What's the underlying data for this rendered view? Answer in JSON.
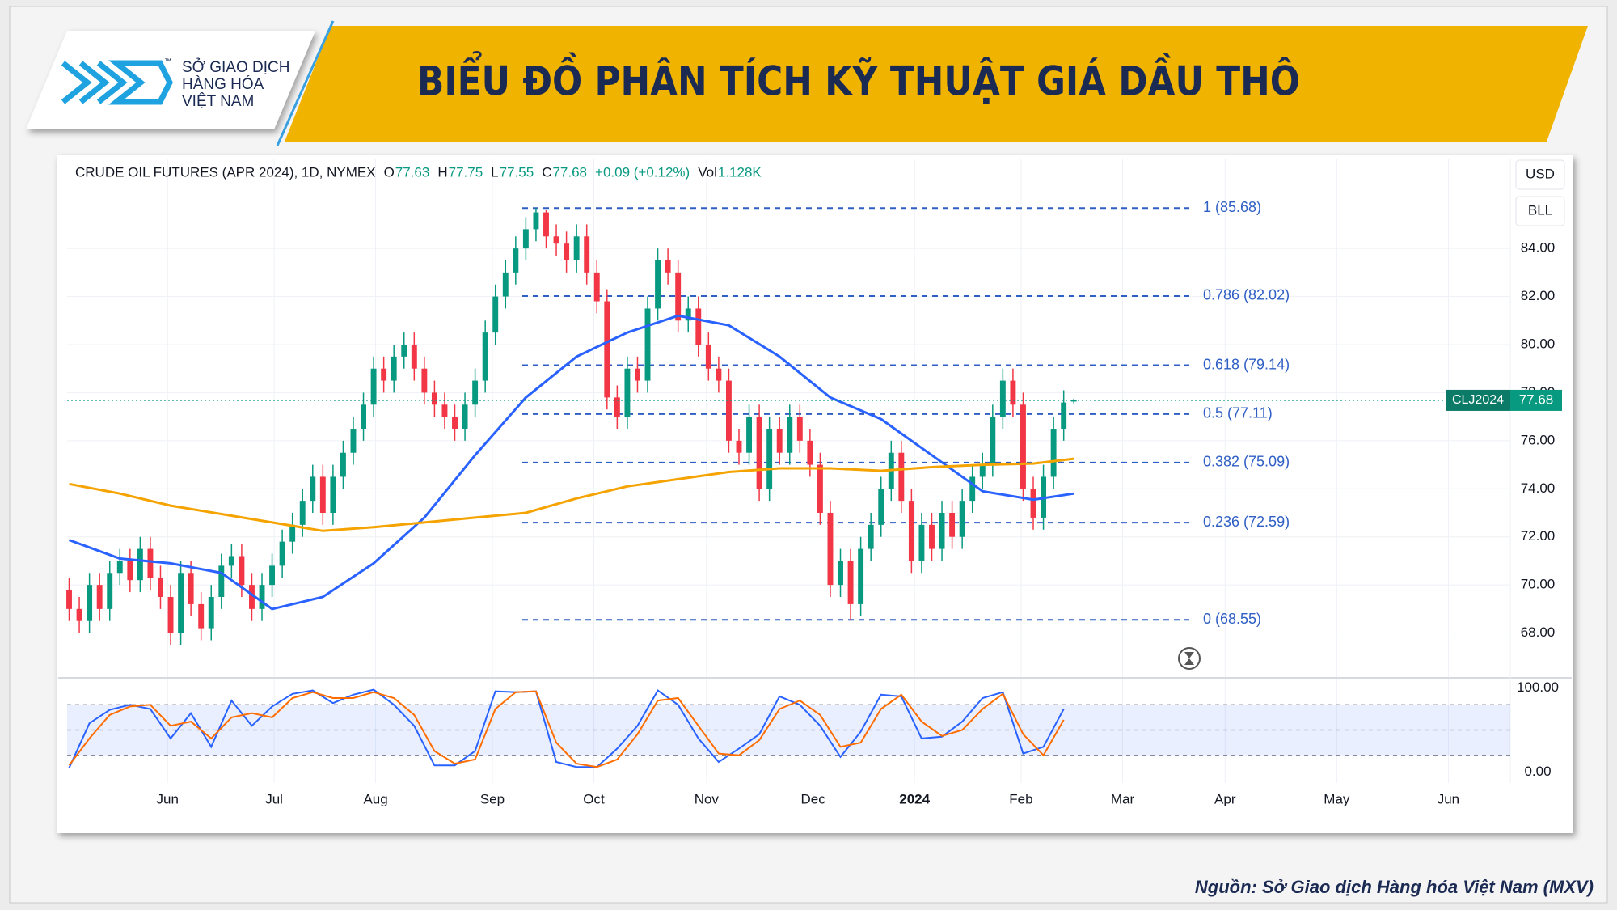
{
  "header": {
    "logo_lines": [
      "SỞ GIAO DỊCH",
      "HÀNG HÓA",
      "VIỆT NAM"
    ],
    "trademark": "™",
    "title": "BIỂU ĐỒ PHÂN TÍCH KỸ THUẬT GIÁ DẦU THÔ"
  },
  "footer": {
    "source": "Nguồn: Sở Giao dịch Hàng hóa Việt Nam (MXV)"
  },
  "chart_data": {
    "type": "candlestick",
    "title": "CRUDE OIL FUTURES (APR 2024), 1D, NYMEX",
    "ohlc_labels": [
      "O",
      "H",
      "L",
      "C"
    ],
    "change": "+0.09 (+0.12%)",
    "volume_label": "Vol",
    "volume": "1.128K",
    "currency": "USD",
    "unit": "BLL",
    "symbol": "CLJ2024",
    "up_color": "#089981",
    "down_color": "#f23645",
    "grid": true,
    "open": [
      69.8,
      69.0,
      68.5,
      70.0,
      69.0,
      70.5,
      71.0,
      70.2,
      71.5,
      70.3,
      69.5,
      68.0,
      70.5,
      69.2,
      68.2,
      69.5,
      70.8,
      71.2,
      70.0,
      69.0,
      70.0,
      70.8,
      71.8,
      72.5,
      73.5,
      74.5,
      73.0,
      74.5,
      75.5,
      76.5,
      77.5,
      79.0,
      78.5,
      79.5,
      80.0,
      79.0,
      78.0,
      77.5,
      77.0,
      76.5,
      77.5,
      78.5,
      80.5,
      82.0,
      83.0,
      84.0,
      84.8,
      85.5,
      84.5,
      84.2,
      83.5,
      84.5,
      83.0,
      81.8,
      77.8,
      77.0,
      79.0,
      78.5,
      81.5,
      83.5,
      83.0,
      81.0,
      81.5,
      80.0,
      79.0,
      78.5,
      76.0,
      75.5,
      77.0,
      74.0,
      76.5,
      75.5,
      77.0,
      76.0,
      75.0,
      73.0,
      70.0,
      71.0,
      69.2,
      71.5,
      72.5,
      74.0,
      75.5,
      73.5,
      71.0,
      72.5,
      71.5,
      73.0,
      72.0,
      73.5,
      74.5,
      75.0,
      77.0,
      78.5,
      77.5,
      74.0,
      72.8,
      74.5,
      76.5,
      77.63
    ],
    "high": [
      70.3,
      69.5,
      70.5,
      70.5,
      71.0,
      71.5,
      71.5,
      72.0,
      72.0,
      70.8,
      70.0,
      71.0,
      71.0,
      69.7,
      70.0,
      71.3,
      71.7,
      71.7,
      70.5,
      70.5,
      71.3,
      72.3,
      73.0,
      74.0,
      75.0,
      75.0,
      75.0,
      76.0,
      77.0,
      78.0,
      79.5,
      79.5,
      80.0,
      80.5,
      80.5,
      79.5,
      78.5,
      78.0,
      77.5,
      78.0,
      79.0,
      81.0,
      82.5,
      83.5,
      84.5,
      85.3,
      85.68,
      85.6,
      85.0,
      84.7,
      85.0,
      85.0,
      83.5,
      82.3,
      78.3,
      79.5,
      79.5,
      82.0,
      84.0,
      84.0,
      83.5,
      82.0,
      82.0,
      80.5,
      79.5,
      79.0,
      76.5,
      77.5,
      77.5,
      77.0,
      77.0,
      77.5,
      77.5,
      76.5,
      75.5,
      73.5,
      71.5,
      71.5,
      72.0,
      73.0,
      74.5,
      76.0,
      76.0,
      74.0,
      73.0,
      73.0,
      73.5,
      73.5,
      74.0,
      75.0,
      75.5,
      77.5,
      79.0,
      79.0,
      78.0,
      74.5,
      75.0,
      77.0,
      78.1,
      77.75
    ],
    "low": [
      68.5,
      68.0,
      68.0,
      68.5,
      68.5,
      70.0,
      69.7,
      69.7,
      69.8,
      69.0,
      67.5,
      67.5,
      68.7,
      67.7,
      67.7,
      69.0,
      70.3,
      69.5,
      68.5,
      68.5,
      69.5,
      70.3,
      71.3,
      72.0,
      73.0,
      72.5,
      72.5,
      74.0,
      75.0,
      76.0,
      77.0,
      78.0,
      78.0,
      79.0,
      78.5,
      77.5,
      77.0,
      76.5,
      76.0,
      76.0,
      77.0,
      78.0,
      80.0,
      81.5,
      82.5,
      83.5,
      84.3,
      84.0,
      83.7,
      83.0,
      83.0,
      82.5,
      81.3,
      77.3,
      76.5,
      76.5,
      78.0,
      78.0,
      81.0,
      82.5,
      80.5,
      80.5,
      79.5,
      78.5,
      78.0,
      75.5,
      75.0,
      75.0,
      73.5,
      73.5,
      75.0,
      75.0,
      75.5,
      74.5,
      72.5,
      69.5,
      69.5,
      68.55,
      68.7,
      71.0,
      72.0,
      73.5,
      73.0,
      70.5,
      70.5,
      71.0,
      71.0,
      71.5,
      71.5,
      73.0,
      74.0,
      74.5,
      76.5,
      77.0,
      73.5,
      72.3,
      72.3,
      74.0,
      76.0,
      77.55
    ],
    "close": [
      69.0,
      68.5,
      70.0,
      69.0,
      70.5,
      71.0,
      70.2,
      71.5,
      70.3,
      69.5,
      68.0,
      70.5,
      69.2,
      68.2,
      69.5,
      70.8,
      71.2,
      70.0,
      69.0,
      70.0,
      70.8,
      71.8,
      72.5,
      73.5,
      74.5,
      73.0,
      74.5,
      75.5,
      76.5,
      77.5,
      79.0,
      78.5,
      79.5,
      80.0,
      79.0,
      78.0,
      77.5,
      77.0,
      76.5,
      77.5,
      78.5,
      80.5,
      82.0,
      83.0,
      84.0,
      84.8,
      85.5,
      84.5,
      84.2,
      83.5,
      84.5,
      83.0,
      81.8,
      77.8,
      77.0,
      79.0,
      78.5,
      81.5,
      83.5,
      83.0,
      81.0,
      81.5,
      80.0,
      79.0,
      78.5,
      76.0,
      75.5,
      77.0,
      74.0,
      76.5,
      75.5,
      77.0,
      76.0,
      75.0,
      73.0,
      70.0,
      71.0,
      69.2,
      71.5,
      72.5,
      74.0,
      75.5,
      73.5,
      71.0,
      72.5,
      71.5,
      73.0,
      72.0,
      73.5,
      74.5,
      75.0,
      77.0,
      78.5,
      77.5,
      74.0,
      72.8,
      74.5,
      76.5,
      77.59,
      77.68
    ],
    "series": [
      {
        "color": "#2962ff",
        "x": [
          0,
          5,
          10,
          15,
          20,
          25,
          30,
          35,
          40,
          45,
          50,
          55,
          60,
          65,
          70,
          75,
          80,
          85,
          90,
          95,
          99
        ],
        "values": [
          71.87,
          71.1,
          70.9,
          70.5,
          69.0,
          69.5,
          70.9,
          72.8,
          75.4,
          77.8,
          79.5,
          80.5,
          81.2,
          80.8,
          79.5,
          77.8,
          76.9,
          75.4,
          73.9,
          73.55,
          73.8
        ]
      },
      {
        "color": "#f5a300",
        "x": [
          0,
          5,
          10,
          15,
          20,
          25,
          30,
          35,
          40,
          45,
          50,
          55,
          60,
          65,
          70,
          75,
          80,
          85,
          90,
          95,
          99
        ],
        "values": [
          74.2,
          73.8,
          73.3,
          72.95,
          72.6,
          72.25,
          72.4,
          72.6,
          72.8,
          73.0,
          73.6,
          74.1,
          74.4,
          74.7,
          74.85,
          74.85,
          74.75,
          74.9,
          75.0,
          75.05,
          75.25
        ]
      }
    ],
    "fib_levels": [
      {
        "label": "1 (85.68)",
        "value": 85.68
      },
      {
        "label": "0.786 (82.02)",
        "value": 82.02
      },
      {
        "label": "0.618 (79.14)",
        "value": 79.14
      },
      {
        "label": "0.5 (77.11)",
        "value": 77.11
      },
      {
        "label": "0.382 (75.09)",
        "value": 75.09
      },
      {
        "label": "0.236 (72.59)",
        "value": 72.59
      },
      {
        "label": "0 (68.55)",
        "value": 68.55
      }
    ],
    "fib_color": "#2f5fc4",
    "xlim": [
      -0.2,
      142
    ],
    "xticks": [
      {
        "value": 9.7,
        "label": "Jun"
      },
      {
        "value": 20.2,
        "label": "Jul"
      },
      {
        "value": 30.2,
        "label": "Aug"
      },
      {
        "value": 41.7,
        "label": "Sep"
      },
      {
        "value": 51.7,
        "label": "Oct"
      },
      {
        "value": 62.8,
        "label": "Nov"
      },
      {
        "value": 73.3,
        "label": "Dec"
      },
      {
        "value": 83.3,
        "label": "2024"
      },
      {
        "value": 93.8,
        "label": "Feb"
      },
      {
        "value": 103.8,
        "label": "Mar"
      },
      {
        "value": 113.9,
        "label": "Apr"
      },
      {
        "value": 124.9,
        "label": "May"
      },
      {
        "value": 135.9,
        "label": "Jun"
      }
    ],
    "ylim": [
      66,
      87
    ],
    "yticks": [
      {
        "value": 68,
        "label": "68.00"
      },
      {
        "value": 70,
        "label": "70.00"
      },
      {
        "value": 72,
        "label": "72.00"
      },
      {
        "value": 74,
        "label": "74.00"
      },
      {
        "value": 76,
        "label": "76.00"
      },
      {
        "value": 78,
        "label": "78.00"
      },
      {
        "value": 80,
        "label": "80.00"
      },
      {
        "value": 82,
        "label": "82.00"
      },
      {
        "value": 84,
        "label": "84.00"
      }
    ],
    "oscillator": {
      "ylim": [
        -13,
        112
      ],
      "yticks": [
        {
          "value": 100,
          "label": "100.00"
        },
        {
          "value": 0,
          "label": "0.00"
        }
      ],
      "bands": [
        20,
        50,
        80
      ],
      "band_color": "#2962ff",
      "x": [
        0,
        2,
        4,
        6,
        8,
        10,
        12,
        14,
        16,
        18,
        20,
        22,
        24,
        26,
        28,
        30,
        32,
        34,
        36,
        38,
        40,
        42,
        44,
        46,
        48,
        50,
        52,
        54,
        56,
        58,
        60,
        62,
        64,
        66,
        68,
        70,
        72,
        74,
        76,
        78,
        80,
        82,
        84,
        86,
        88,
        90,
        92,
        94,
        96,
        98
      ],
      "series": [
        {
          "color": "#2962ff",
          "values": [
            5,
            58,
            74,
            80,
            75,
            40,
            70,
            30,
            85,
            55,
            78,
            93,
            97,
            82,
            92,
            98,
            80,
            55,
            8,
            8,
            25,
            96,
            95,
            96,
            12,
            6,
            6,
            28,
            55,
            97,
            80,
            40,
            12,
            28,
            45,
            90,
            80,
            55,
            18,
            48,
            92,
            90,
            40,
            42,
            60,
            88,
            95,
            22,
            30,
            75
          ]
        },
        {
          "color": "#ff6d00",
          "values": [
            8,
            40,
            68,
            78,
            80,
            55,
            60,
            40,
            65,
            70,
            65,
            88,
            95,
            88,
            88,
            95,
            88,
            68,
            25,
            10,
            15,
            75,
            95,
            96,
            35,
            10,
            6,
            15,
            45,
            85,
            88,
            55,
            22,
            20,
            38,
            75,
            85,
            68,
            30,
            35,
            75,
            92,
            60,
            43,
            50,
            75,
            93,
            45,
            20,
            62
          ]
        }
      ]
    }
  }
}
